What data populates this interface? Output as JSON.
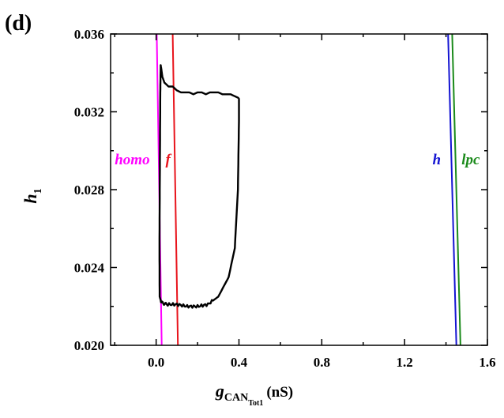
{
  "chart_data": {
    "type": "line",
    "panel_label": "(d)",
    "title": "",
    "xlabel": {
      "var": "g",
      "subscript": "CAN",
      "sub_subscript": "Tot1",
      "unit": "(nS)"
    },
    "ylabel": {
      "var": "h",
      "subscript": "1"
    },
    "xlim": [
      -0.22,
      1.6
    ],
    "ylim": [
      0.02,
      0.036
    ],
    "xticks": [
      0.0,
      0.4,
      0.8,
      1.2,
      1.6
    ],
    "xtick_labels": [
      "0.0",
      "0.4",
      "0.8",
      "1.2",
      "1.6"
    ],
    "yticks": [
      0.02,
      0.024,
      0.028,
      0.032,
      0.036
    ],
    "ytick_labels": [
      "0.020",
      "0.024",
      "0.028",
      "0.032",
      "0.036"
    ],
    "grid": false,
    "series": [
      {
        "name": "homo",
        "color": "#ff00ff",
        "points": [
          [
            0.003,
            0.036
          ],
          [
            0.027,
            0.02
          ]
        ]
      },
      {
        "name": "f",
        "color": "#e8141c",
        "points": [
          [
            0.08,
            0.036
          ],
          [
            0.105,
            0.02
          ]
        ]
      },
      {
        "name": "h",
        "color": "#1414d2",
        "points": [
          [
            1.41,
            0.036
          ],
          [
            1.45,
            0.02
          ]
        ]
      },
      {
        "name": "lpc",
        "color": "#1a8a1a",
        "points": [
          [
            1.43,
            0.036
          ],
          [
            1.47,
            0.02
          ]
        ]
      },
      {
        "name": "trajectory",
        "color": "#000000",
        "points": [
          [
            0.4,
            0.0327
          ],
          [
            0.38,
            0.0328
          ],
          [
            0.36,
            0.0329
          ],
          [
            0.34,
            0.0329
          ],
          [
            0.32,
            0.0329
          ],
          [
            0.3,
            0.033
          ],
          [
            0.28,
            0.033
          ],
          [
            0.26,
            0.033
          ],
          [
            0.24,
            0.0329
          ],
          [
            0.22,
            0.033
          ],
          [
            0.2,
            0.033
          ],
          [
            0.18,
            0.0329
          ],
          [
            0.16,
            0.033
          ],
          [
            0.14,
            0.033
          ],
          [
            0.12,
            0.033
          ],
          [
            0.1,
            0.0331
          ],
          [
            0.09,
            0.0332
          ],
          [
            0.08,
            0.0333
          ],
          [
            0.07,
            0.0333
          ],
          [
            0.06,
            0.0333
          ],
          [
            0.05,
            0.0334
          ],
          [
            0.04,
            0.0335
          ],
          [
            0.03,
            0.0338
          ],
          [
            0.025,
            0.0342
          ],
          [
            0.022,
            0.0344
          ],
          [
            0.02,
            0.033
          ],
          [
            0.018,
            0.029
          ],
          [
            0.016,
            0.025
          ],
          [
            0.017,
            0.0225
          ],
          [
            0.025,
            0.0222
          ],
          [
            0.05,
            0.0221
          ],
          [
            0.1,
            0.0221
          ],
          [
            0.15,
            0.022
          ],
          [
            0.2,
            0.022
          ],
          [
            0.25,
            0.0221
          ],
          [
            0.3,
            0.0225
          ],
          [
            0.35,
            0.0235
          ],
          [
            0.38,
            0.025
          ],
          [
            0.395,
            0.028
          ],
          [
            0.4,
            0.0315
          ],
          [
            0.4,
            0.0327
          ]
        ]
      }
    ],
    "annotations": [
      {
        "text": "homo",
        "color": "#ff00ff",
        "x": -0.2,
        "y": 0.0293
      },
      {
        "text": "f",
        "color": "#e8141c",
        "x": 0.045,
        "y": 0.0293
      },
      {
        "text": "h",
        "color": "#1414d2",
        "x": 1.335,
        "y": 0.0293
      },
      {
        "text": "lpc",
        "color": "#1a8a1a",
        "x": 1.475,
        "y": 0.0293
      }
    ]
  }
}
